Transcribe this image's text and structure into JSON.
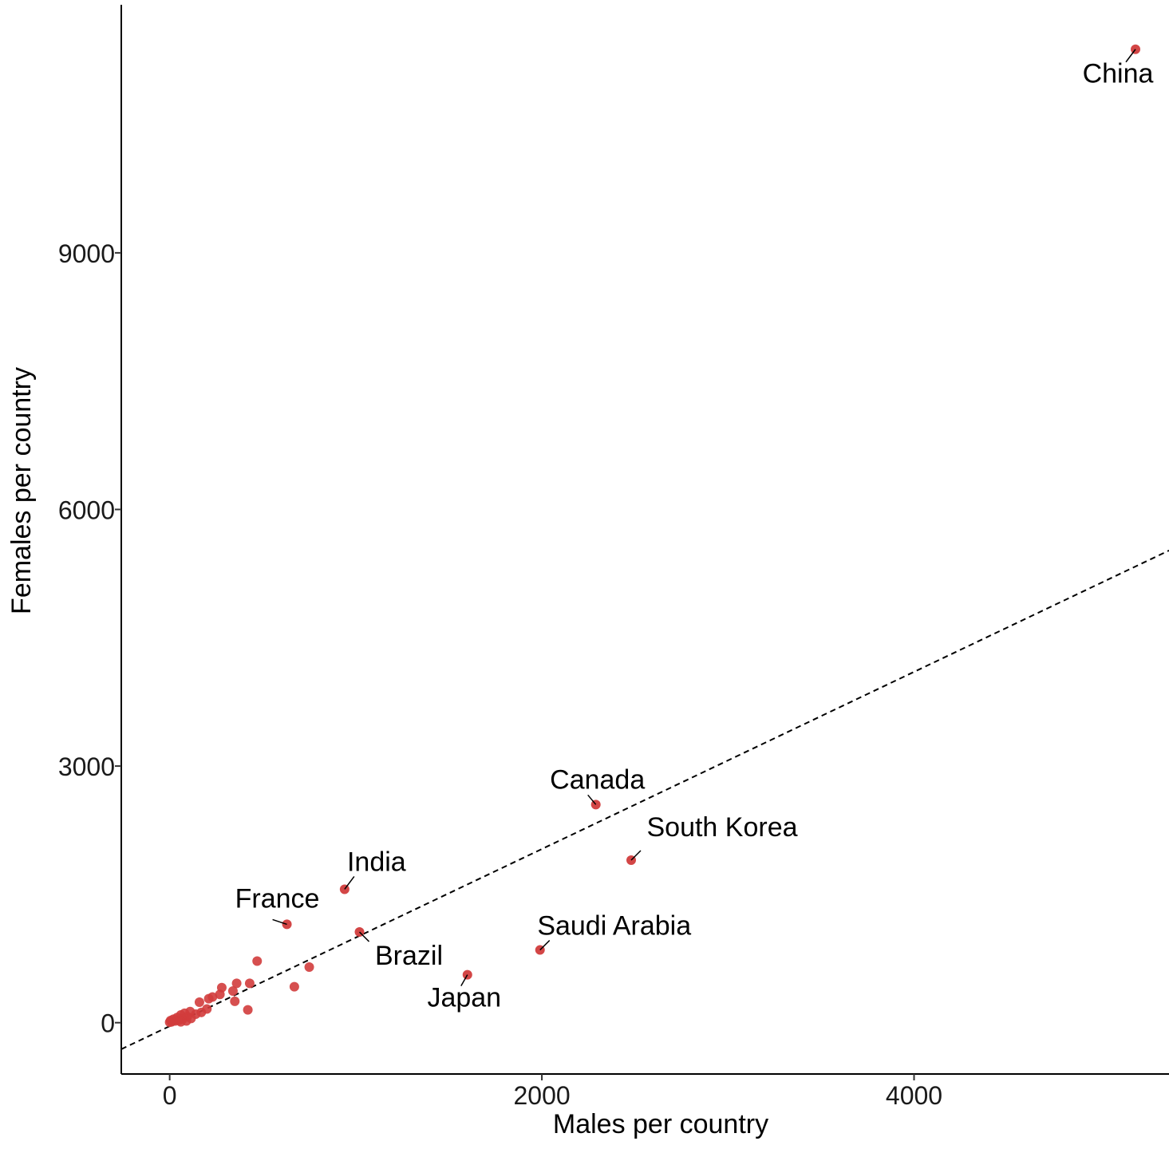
{
  "chart_data": {
    "type": "scatter",
    "xlabel": "Males per country",
    "ylabel": "Females per country",
    "xlim": [
      -260,
      5370
    ],
    "ylim": [
      -600,
      11900
    ],
    "x_ticks": [
      0,
      2000,
      4000
    ],
    "y_ticks": [
      0,
      3000,
      6000,
      9000
    ],
    "grid": false,
    "colors": {
      "points": "#d13c3c",
      "trend_line": "#000000",
      "axis": "#000000"
    },
    "trend_line": {
      "style": "dashed",
      "from": [
        -260,
        -310
      ],
      "to": [
        5370,
        5520
      ]
    },
    "labeled_points": [
      {
        "label": "China",
        "x": 5190,
        "y": 11380
      },
      {
        "label": "Canada",
        "x": 2290,
        "y": 2550
      },
      {
        "label": "South Korea",
        "x": 2480,
        "y": 1900
      },
      {
        "label": "India",
        "x": 940,
        "y": 1560
      },
      {
        "label": "France",
        "x": 630,
        "y": 1150
      },
      {
        "label": "Brazil",
        "x": 1020,
        "y": 1060
      },
      {
        "label": "Saudi Arabia",
        "x": 1990,
        "y": 850
      },
      {
        "label": "Japan",
        "x": 1600,
        "y": 560
      }
    ],
    "unlabeled_points": [
      {
        "x": 470,
        "y": 720
      },
      {
        "x": 750,
        "y": 650
      },
      {
        "x": 670,
        "y": 420
      },
      {
        "x": 430,
        "y": 460
      },
      {
        "x": 360,
        "y": 460
      },
      {
        "x": 350,
        "y": 250
      },
      {
        "x": 420,
        "y": 150
      },
      {
        "x": 340,
        "y": 370
      },
      {
        "x": 280,
        "y": 410
      },
      {
        "x": 270,
        "y": 330
      },
      {
        "x": 230,
        "y": 300
      },
      {
        "x": 210,
        "y": 280
      },
      {
        "x": 160,
        "y": 240
      },
      {
        "x": 200,
        "y": 160
      },
      {
        "x": 170,
        "y": 120
      },
      {
        "x": 140,
        "y": 100
      },
      {
        "x": 110,
        "y": 130
      },
      {
        "x": 95,
        "y": 70
      },
      {
        "x": 80,
        "y": 110
      },
      {
        "x": 70,
        "y": 40
      },
      {
        "x": 60,
        "y": 90
      },
      {
        "x": 50,
        "y": 30
      },
      {
        "x": 40,
        "y": 60
      },
      {
        "x": 30,
        "y": 20
      },
      {
        "x": 20,
        "y": 40
      },
      {
        "x": 10,
        "y": 10
      },
      {
        "x": 5,
        "y": 25
      },
      {
        "x": 0,
        "y": 5
      },
      {
        "x": 90,
        "y": 20
      },
      {
        "x": 115,
        "y": 50
      },
      {
        "x": 60,
        "y": 10
      }
    ]
  }
}
